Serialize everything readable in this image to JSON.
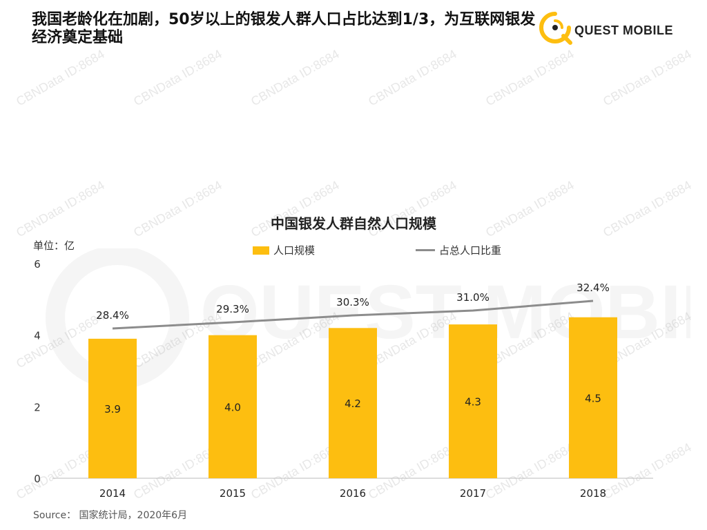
{
  "header": {
    "title": "我国老龄化在加剧，50岁以上的银发人群人口占比达到1/3，为互联网银发经济奠定基础"
  },
  "logo": {
    "brand": "QUEST MOBILE",
    "accent_color": "#FDBE10"
  },
  "watermark": {
    "text": "CBNData ID:8684",
    "big_text": "QUEST MOBILE"
  },
  "source": "Source： 国家统计局，2020年6月",
  "chart_data": {
    "type": "bar",
    "title": "中国银发人群自然人口规模",
    "unit_label": "单位：亿",
    "categories": [
      "2014",
      "2015",
      "2016",
      "2017",
      "2018"
    ],
    "series": [
      {
        "name": "人口规模",
        "type": "bar",
        "color": "#FDBE10",
        "values": [
          3.9,
          4.0,
          4.2,
          4.3,
          4.5
        ],
        "labels": [
          "3.9",
          "4.0",
          "4.2",
          "4.3",
          "4.5"
        ]
      },
      {
        "name": "占总人口比重",
        "type": "line",
        "color": "#8C8C8C",
        "values": [
          28.4,
          29.3,
          30.3,
          31.0,
          32.4
        ],
        "labels": [
          "28.4%",
          "29.3%",
          "30.3%",
          "31.0%",
          "32.4%"
        ]
      }
    ],
    "y_ticks": [
      "0",
      "2",
      "4",
      "6"
    ],
    "ylim": [
      0,
      6
    ],
    "legend_position": "top"
  }
}
